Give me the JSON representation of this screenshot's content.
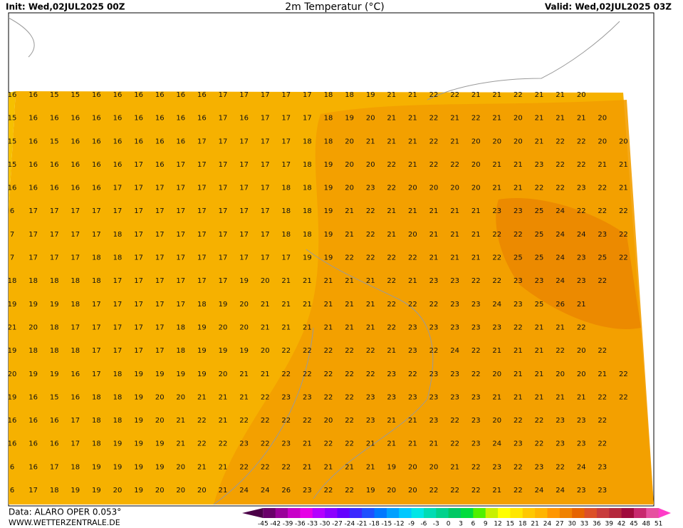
{
  "header": {
    "init": "Init: Wed,02JUL2025 00Z",
    "title": "2m Temperatur (°C)",
    "valid": "Valid: Wed,02JUL2025 03Z"
  },
  "footer": {
    "source": "Data: ALARO OPER 0.053°",
    "website": "WWW.WETTERZENTRALE.DE"
  },
  "colorbar": {
    "labels": [
      -45,
      -42,
      -39,
      -36,
      -33,
      -30,
      -27,
      -24,
      -21,
      -18,
      -15,
      -12,
      -9,
      -6,
      -3,
      0,
      3,
      6,
      9,
      12,
      15,
      18,
      21,
      24,
      27,
      30,
      33,
      36,
      39,
      42,
      45,
      48,
      51
    ],
    "colors": [
      "#4b0048",
      "#6a006a",
      "#9a009a",
      "#c800c8",
      "#e600e6",
      "#b400ff",
      "#8c00ff",
      "#6400ff",
      "#3c28ff",
      "#1e50ff",
      "#0078ff",
      "#00a0ff",
      "#00c8ff",
      "#00e6e6",
      "#00dcb4",
      "#00d28c",
      "#00c864",
      "#00dc3c",
      "#50f000",
      "#c8f000",
      "#ffff00",
      "#ffe600",
      "#ffc800",
      "#ffb400",
      "#ff9600",
      "#f08200",
      "#e66400",
      "#dc5028",
      "#c83c3c",
      "#b4283c",
      "#a00a3c",
      "#c8286e",
      "#e650a0",
      "#ff3cc8"
    ]
  },
  "grid": {
    "rows": [
      [
        16,
        16,
        15,
        15,
        16,
        16,
        16,
        16,
        16,
        16,
        17,
        17,
        17,
        17,
        17,
        18,
        18,
        19,
        21,
        21,
        22,
        22,
        21,
        21,
        22,
        21,
        21,
        20
      ],
      [
        15,
        16,
        16,
        16,
        16,
        16,
        16,
        16,
        16,
        16,
        17,
        16,
        17,
        17,
        17,
        18,
        19,
        20,
        21,
        21,
        22,
        21,
        22,
        21,
        20,
        21,
        21,
        21,
        20
      ],
      [
        15,
        16,
        15,
        16,
        16,
        16,
        16,
        16,
        16,
        17,
        17,
        17,
        17,
        17,
        18,
        18,
        20,
        21,
        21,
        21,
        22,
        21,
        20,
        20,
        20,
        21,
        22,
        22,
        20,
        20
      ],
      [
        15,
        16,
        16,
        16,
        16,
        16,
        17,
        16,
        17,
        17,
        17,
        17,
        17,
        17,
        18,
        19,
        20,
        20,
        22,
        21,
        22,
        22,
        20,
        21,
        21,
        23,
        22,
        22,
        21,
        21
      ],
      [
        16,
        16,
        16,
        16,
        16,
        17,
        17,
        17,
        17,
        17,
        17,
        17,
        17,
        18,
        18,
        19,
        20,
        23,
        22,
        20,
        20,
        20,
        20,
        21,
        21,
        22,
        22,
        23,
        22,
        21
      ],
      [
        6,
        17,
        17,
        17,
        17,
        17,
        17,
        17,
        17,
        17,
        17,
        17,
        17,
        18,
        18,
        19,
        21,
        22,
        21,
        21,
        21,
        21,
        21,
        23,
        23,
        25,
        24,
        22,
        22,
        22
      ],
      [
        7,
        17,
        17,
        17,
        17,
        18,
        17,
        17,
        17,
        17,
        17,
        17,
        17,
        18,
        18,
        19,
        21,
        22,
        21,
        20,
        21,
        21,
        21,
        22,
        22,
        25,
        24,
        24,
        23,
        22
      ],
      [
        7,
        17,
        17,
        17,
        18,
        18,
        17,
        17,
        17,
        17,
        17,
        17,
        17,
        17,
        19,
        19,
        22,
        22,
        22,
        22,
        21,
        21,
        21,
        22,
        25,
        25,
        24,
        23,
        25,
        22
      ],
      [
        18,
        18,
        18,
        18,
        18,
        17,
        17,
        17,
        17,
        17,
        17,
        19,
        20,
        21,
        21,
        21,
        21,
        21,
        22,
        21,
        23,
        23,
        22,
        22,
        23,
        23,
        24,
        23,
        22
      ],
      [
        19,
        19,
        19,
        18,
        17,
        17,
        17,
        17,
        17,
        18,
        19,
        20,
        21,
        21,
        21,
        21,
        21,
        21,
        22,
        22,
        22,
        23,
        23,
        24,
        23,
        25,
        26,
        21
      ],
      [
        21,
        20,
        18,
        17,
        17,
        17,
        17,
        17,
        18,
        19,
        20,
        20,
        21,
        21,
        21,
        21,
        21,
        21,
        22,
        23,
        23,
        23,
        23,
        23,
        22,
        21,
        21,
        22
      ],
      [
        19,
        18,
        18,
        18,
        17,
        17,
        17,
        17,
        18,
        19,
        19,
        19,
        20,
        22,
        22,
        22,
        22,
        22,
        21,
        23,
        22,
        24,
        22,
        21,
        21,
        21,
        22,
        20,
        22
      ],
      [
        20,
        19,
        19,
        16,
        17,
        18,
        19,
        19,
        19,
        19,
        20,
        21,
        21,
        22,
        22,
        22,
        22,
        22,
        23,
        22,
        23,
        23,
        22,
        20,
        21,
        21,
        20,
        20,
        21,
        22
      ],
      [
        19,
        16,
        15,
        16,
        18,
        18,
        19,
        20,
        20,
        21,
        21,
        21,
        22,
        23,
        23,
        22,
        22,
        23,
        23,
        23,
        23,
        23,
        23,
        21,
        21,
        21,
        21,
        21,
        22,
        22
      ],
      [
        16,
        16,
        16,
        17,
        18,
        18,
        19,
        20,
        21,
        22,
        21,
        22,
        22,
        22,
        22,
        20,
        22,
        23,
        21,
        21,
        23,
        22,
        23,
        20,
        22,
        22,
        23,
        23,
        22
      ],
      [
        16,
        16,
        16,
        17,
        18,
        19,
        19,
        19,
        21,
        22,
        22,
        23,
        22,
        23,
        21,
        22,
        22,
        21,
        21,
        21,
        21,
        22,
        23,
        24,
        23,
        22,
        23,
        23,
        22
      ],
      [
        6,
        16,
        17,
        18,
        19,
        19,
        19,
        19,
        20,
        21,
        21,
        22,
        22,
        22,
        21,
        21,
        21,
        21,
        19,
        20,
        20,
        21,
        22,
        23,
        22,
        23,
        22,
        24,
        23
      ],
      [
        6,
        17,
        18,
        19,
        19,
        20,
        19,
        20,
        20,
        20,
        21,
        24,
        24,
        26,
        23,
        22,
        22,
        19,
        20,
        20,
        22,
        22,
        22,
        21,
        22,
        24,
        24,
        23,
        23
      ]
    ]
  }
}
